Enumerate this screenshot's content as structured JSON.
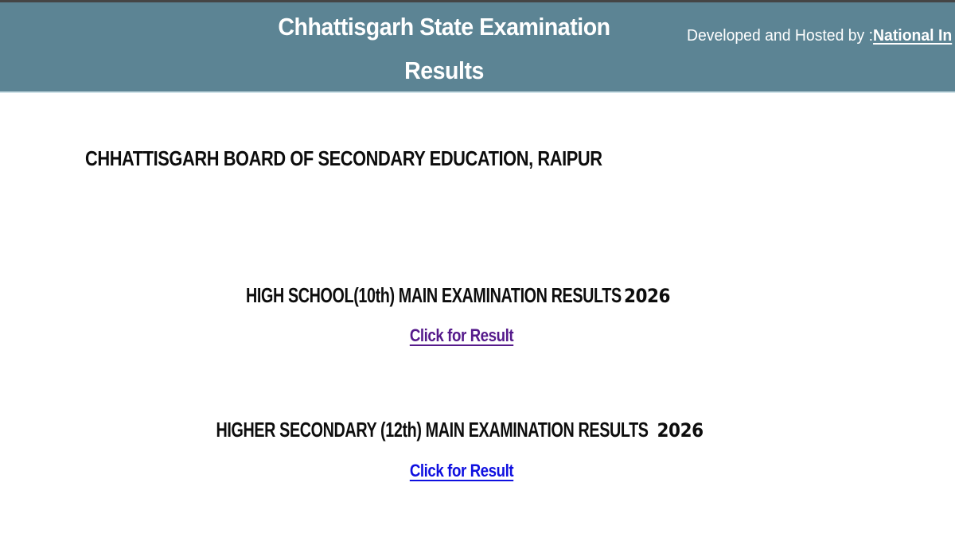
{
  "header": {
    "title_line1": "Chhattisgarh State Examination",
    "title_line2": "Results",
    "hosted_by_label": "Developed and Hosted by :",
    "hosted_by_link": "National In",
    "bg_color": "#5c8494",
    "top_strip_color": "#454545",
    "bottom_strip_color": "#cfe2e8",
    "text_color": "#ffffff"
  },
  "board": {
    "name": "CHHATTISGARH BOARD OF SECONDARY EDUCATION, RAIPUR"
  },
  "results": [
    {
      "title": "HIGH SCHOOL(10th) MAIN EXAMINATION RESULTS",
      "year": "2026",
      "link_label": "Click for Result",
      "link_color": "#551a8b"
    },
    {
      "title": "HIGHER SECONDARY (12th) MAIN EXAMINATION RESULTS",
      "year": "2026",
      "link_label": "Click for Result",
      "link_color": "#0f10e0"
    }
  ]
}
